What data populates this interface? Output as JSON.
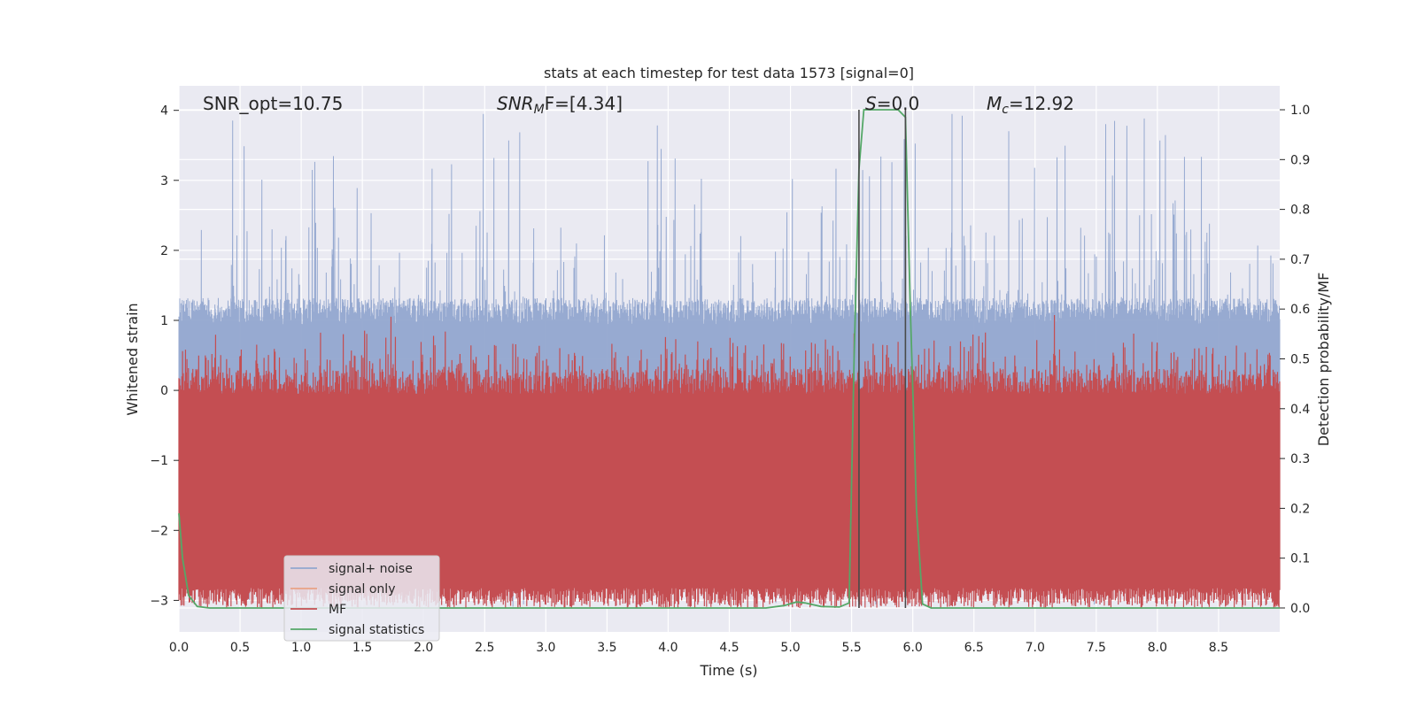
{
  "chart_data": {
    "type": "line",
    "title": "stats at each timestep for test data 1573 [signal=0]",
    "xlabel": "Time (s)",
    "ylabel_left": "Whitened strain",
    "ylabel_right": "Detection probability/MF",
    "xlim": [
      0.0,
      9.0
    ],
    "ylim_left": [
      -3.45,
      4.35
    ],
    "ylim_right": [
      -0.048,
      1.048
    ],
    "grid": true,
    "legend_position": "lower-left",
    "x_ticks": [
      "0.0",
      "0.5",
      "1.0",
      "1.5",
      "2.0",
      "2.5",
      "3.0",
      "3.5",
      "4.0",
      "4.5",
      "5.0",
      "5.5",
      "6.0",
      "6.5",
      "7.0",
      "7.5",
      "8.0",
      "8.5"
    ],
    "x_tick_values": [
      0.0,
      0.5,
      1.0,
      1.5,
      2.0,
      2.5,
      3.0,
      3.5,
      4.0,
      4.5,
      5.0,
      5.5,
      6.0,
      6.5,
      7.0,
      7.5,
      8.0,
      8.5
    ],
    "y_left_ticks": [
      "−3",
      "−2",
      "−1",
      "0",
      "1",
      "2",
      "3",
      "4"
    ],
    "y_left_tick_values": [
      -3,
      -2,
      -1,
      0,
      1,
      2,
      3,
      4
    ],
    "y_right_ticks": [
      "0.0",
      "0.1",
      "0.2",
      "0.3",
      "0.4",
      "0.5",
      "0.6",
      "0.7",
      "0.8",
      "0.9",
      "1.0"
    ],
    "y_right_tick_values": [
      0.0,
      0.1,
      0.2,
      0.3,
      0.4,
      0.5,
      0.6,
      0.7,
      0.8,
      0.9,
      1.0
    ],
    "annotations": {
      "snr_opt": "SNR_opt=10.75",
      "snr_mf_main": "SNR",
      "snr_mf_sub": "M",
      "snr_mf_rest": "F=[4.34]",
      "s_main": "S",
      "s_rest": "=0.0",
      "mc_main": "M",
      "mc_sub": "c",
      "mc_rest": "=12.92"
    },
    "vertical_lines_x": [
      5.56,
      5.94
    ],
    "series": [
      {
        "name": "signal+ noise",
        "color": "#92a6cf",
        "axis": "left",
        "noise_envelope": {
          "typical_pos": 1.1,
          "typical_neg": -1.0,
          "max": 4.0,
          "min": -3.1
        }
      },
      {
        "name": "signal only",
        "color": "#e8a286",
        "axis": "left",
        "values": []
      },
      {
        "name": "MF",
        "color": "#c44e52",
        "axis": "right",
        "band": {
          "low": 0.0,
          "high": 0.5,
          "mean": 0.43
        }
      },
      {
        "name": "signal statistics",
        "color": "#55a868",
        "axis": "right",
        "x": [
          0.0,
          0.03,
          0.08,
          0.15,
          0.25,
          0.5,
          1.0,
          2.0,
          3.0,
          4.0,
          4.8,
          4.95,
          5.05,
          5.12,
          5.25,
          5.4,
          5.48,
          5.52,
          5.56,
          5.6,
          5.7,
          5.8,
          5.88,
          5.94,
          5.98,
          6.03,
          6.08,
          6.15,
          6.5,
          7.0,
          8.0,
          9.0
        ],
        "values": [
          0.19,
          0.1,
          0.025,
          0.003,
          0.0,
          0.0,
          0.0,
          0.0,
          0.0,
          0.0,
          0.0,
          0.005,
          0.012,
          0.01,
          0.003,
          0.002,
          0.01,
          0.5,
          0.88,
          1.0,
          1.0,
          1.0,
          1.0,
          0.985,
          0.6,
          0.2,
          0.008,
          0.0,
          0.0,
          0.0,
          0.0,
          0.0
        ]
      }
    ]
  }
}
